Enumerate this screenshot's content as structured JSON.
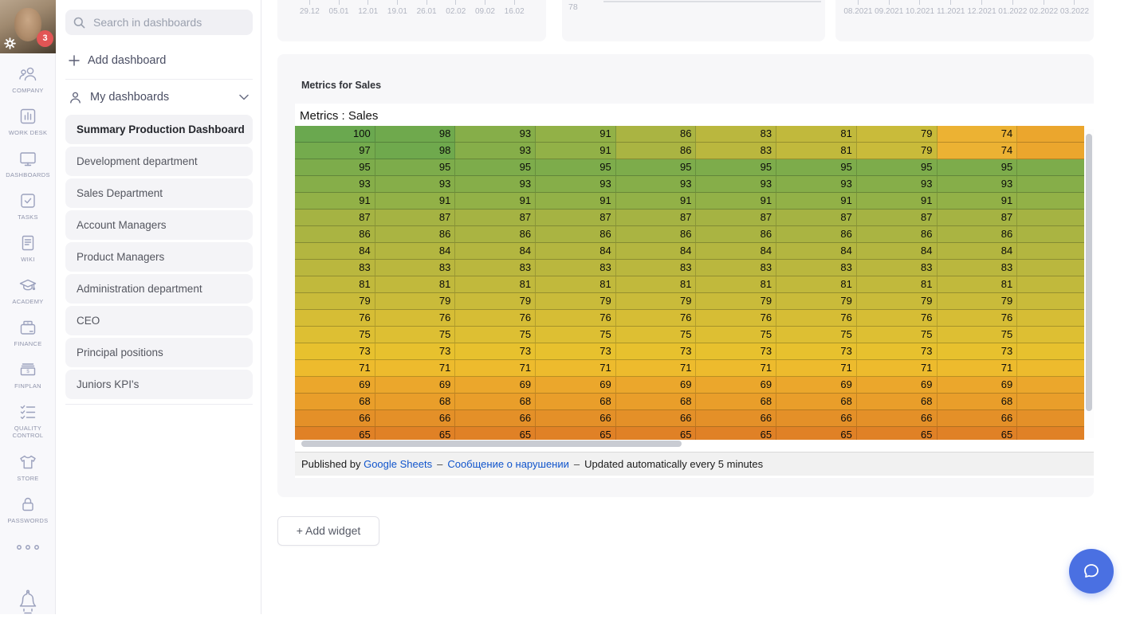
{
  "left_rail": {
    "notification_count": "3",
    "items": [
      {
        "id": "company",
        "label": "COMPANY"
      },
      {
        "id": "work-desk",
        "label": "WORK DESK"
      },
      {
        "id": "dashboards",
        "label": "DASHBOARDS"
      },
      {
        "id": "tasks",
        "label": "TASKS"
      },
      {
        "id": "wiki",
        "label": "WIKI"
      },
      {
        "id": "academy",
        "label": "ACADEMY"
      },
      {
        "id": "finance",
        "label": "FINANCE"
      },
      {
        "id": "finplan",
        "label": "FINPLAN"
      },
      {
        "id": "quality-control",
        "label": "QUALITY CONTROL"
      },
      {
        "id": "store",
        "label": "STORE"
      },
      {
        "id": "passwords",
        "label": "PASSWORDS"
      }
    ]
  },
  "sidebar": {
    "search_placeholder": "Search in dashboards",
    "add_dashboard_label": "Add dashboard",
    "section_title": "My dashboards",
    "dashboards": [
      {
        "label": "Summary Production Dashboard",
        "active": true
      },
      {
        "label": "Development department",
        "active": false
      },
      {
        "label": "Sales Department",
        "active": false
      },
      {
        "label": "Account Managers",
        "active": false
      },
      {
        "label": "Product Managers",
        "active": false
      },
      {
        "label": "Administration department",
        "active": false
      },
      {
        "label": "CEO",
        "active": false
      },
      {
        "label": "Principal positions",
        "active": false
      },
      {
        "label": "Juniors KPI's",
        "active": false
      }
    ]
  },
  "top_widgets": {
    "left_axis_ticks": [
      "29.12",
      "05.01",
      "12.01",
      "19.01",
      "26.01",
      "02.02",
      "09.02",
      "16.02"
    ],
    "middle_value": "78",
    "right_axis_ticks": [
      "08.2021",
      "09.2021",
      "10.2021",
      "11.2021",
      "12.2021",
      "01.2022",
      "02.2022",
      "03.2022"
    ]
  },
  "metrics_widget": {
    "title": "Metrics for Sales",
    "sheet_title": "Metrics : Sales",
    "footer": {
      "prefix": "Published by",
      "link_sheets": "Google Sheets",
      "dash": "–",
      "link_report": "Сообщение о нарушении",
      "suffix": "Updated automatically every 5 minutes"
    }
  },
  "add_widget_label": "+ Add widget",
  "colors": {
    "fab_blue": "#4a70e2",
    "badge_red": "#e25555",
    "link_blue": "#1155cc",
    "heatmap_green": "#6aa84f",
    "heatmap_orange": "#e08126"
  },
  "chart_data": {
    "type": "heatmap",
    "title": "Metrics : Sales",
    "columns_visible": 9,
    "partial_tenth_column": true,
    "rows": [
      [
        100,
        98,
        93,
        91,
        86,
        83,
        81,
        79,
        74
      ],
      [
        97,
        98,
        93,
        91,
        86,
        83,
        81,
        79,
        74
      ],
      [
        95,
        95,
        95,
        95,
        95,
        95,
        95,
        95,
        95
      ],
      [
        93,
        93,
        93,
        93,
        93,
        93,
        93,
        93,
        93
      ],
      [
        91,
        91,
        91,
        91,
        91,
        91,
        91,
        91,
        91
      ],
      [
        87,
        87,
        87,
        87,
        87,
        87,
        87,
        87,
        87
      ],
      [
        86,
        86,
        86,
        86,
        86,
        86,
        86,
        86,
        86
      ],
      [
        84,
        84,
        84,
        84,
        84,
        84,
        84,
        84,
        84
      ],
      [
        83,
        83,
        83,
        83,
        83,
        83,
        83,
        83,
        83
      ],
      [
        81,
        81,
        81,
        81,
        81,
        81,
        81,
        81,
        81
      ],
      [
        79,
        79,
        79,
        79,
        79,
        79,
        79,
        79,
        79
      ],
      [
        76,
        76,
        76,
        76,
        76,
        76,
        76,
        76,
        76
      ],
      [
        75,
        75,
        75,
        75,
        75,
        75,
        75,
        75,
        75
      ],
      [
        73,
        73,
        73,
        73,
        73,
        73,
        73,
        73,
        73
      ],
      [
        71,
        71,
        71,
        71,
        71,
        71,
        71,
        71,
        71
      ],
      [
        69,
        69,
        69,
        69,
        69,
        69,
        69,
        69,
        69
      ],
      [
        68,
        68,
        68,
        68,
        68,
        68,
        68,
        68,
        68
      ],
      [
        66,
        66,
        66,
        66,
        66,
        66,
        66,
        66,
        66
      ],
      [
        65,
        65,
        65,
        65,
        65,
        65,
        65,
        65,
        65
      ]
    ],
    "value_colors": {
      "100": "#6aa84f",
      "98": "#6fa94d",
      "97": "#74ab4d",
      "95": "#7dac4b",
      "93": "#86ae49",
      "91": "#92b147",
      "87": "#a5b343",
      "86": "#aab442",
      "84": "#b3b640",
      "83": "#bab73e",
      "81": "#c1b93c",
      "79": "#c9bb3a",
      "76": "#d6bd35",
      "75": "#ddbf33",
      "74": "#ecb233",
      "73": "#e7c12e",
      "71": "#edbb2d",
      "69": "#eba72c",
      "68": "#e99e2a",
      "66": "#e49028",
      "65": "#e08126"
    },
    "trailing_column_colors": [
      "#eba62d",
      "#eba62d",
      "#7dac4b",
      "#86ae49",
      "#92b147",
      "#a5b343",
      "#aab442",
      "#b3b640",
      "#bab73e",
      "#c1b93c",
      "#c9bb3a",
      "#d6bd35",
      "#ddbf33",
      "#e7c12e",
      "#edbb2d",
      "#eba72c",
      "#e99e2a",
      "#e49028",
      "#e08126"
    ]
  }
}
